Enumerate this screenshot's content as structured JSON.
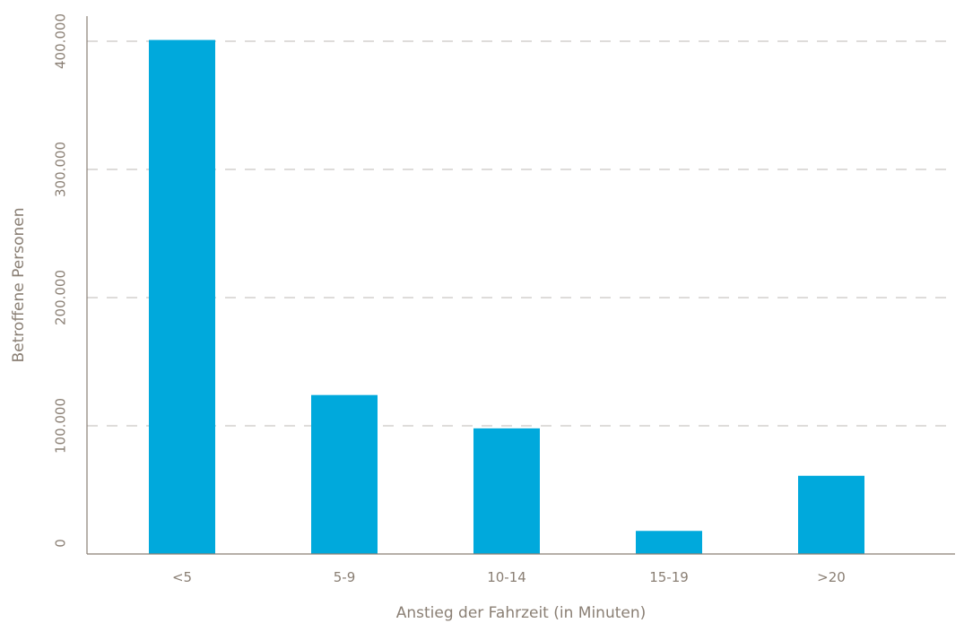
{
  "chart_data": {
    "type": "bar",
    "title": "",
    "xlabel": "Anstieg der Fahrzeit (in Minuten)",
    "ylabel": "Betroffene Personen",
    "categories": [
      "<5",
      "5-9",
      "10-14",
      "15-19",
      ">20"
    ],
    "values": [
      401000,
      124000,
      98000,
      18000,
      61000
    ],
    "ylim": [
      0,
      400000
    ],
    "yticks": [
      0,
      100000,
      200000,
      300000,
      400000
    ],
    "ytick_labels": [
      "0",
      "100.000",
      "200.000",
      "300.000",
      "400.000"
    ],
    "grid": true,
    "legend": "none",
    "bar_color": "#00a9dc",
    "axis_color": "#8a7f74",
    "grid_color": "#bdbab6"
  }
}
